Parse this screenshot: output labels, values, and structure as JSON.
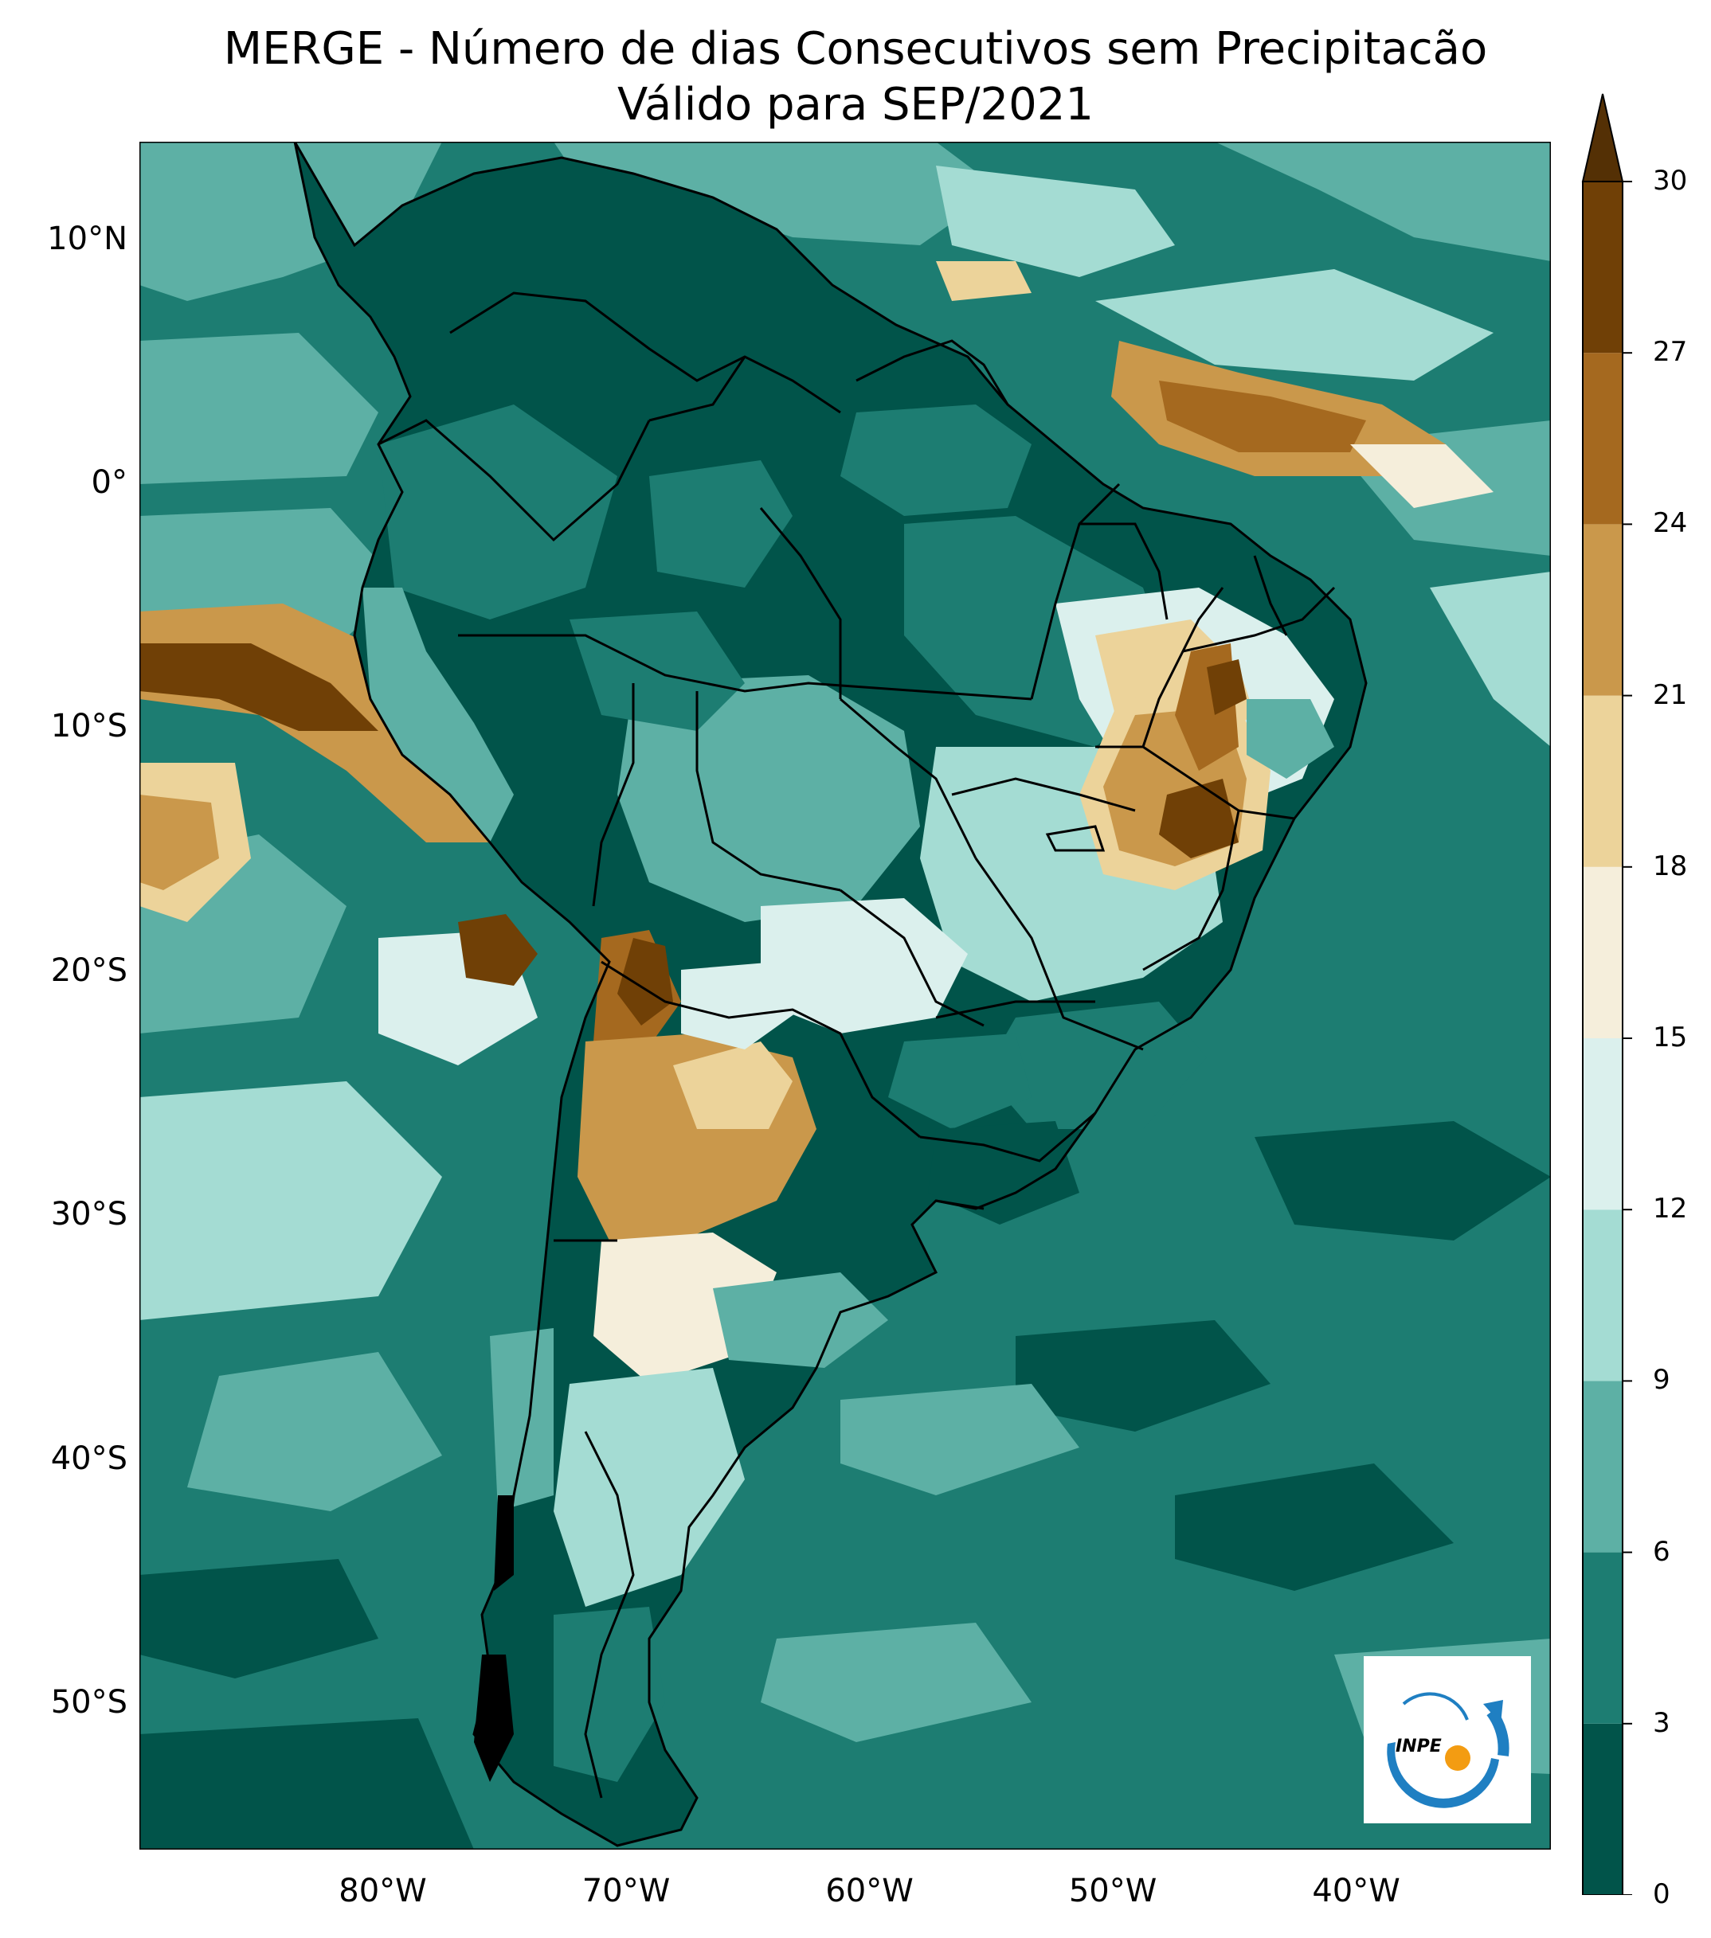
{
  "title": {
    "line1": "MERGE - Número de dias Consecutivos sem Precipitacão",
    "line2": "Válido para SEP/2021"
  },
  "map": {
    "projection": "lat-lon",
    "lon_range": [
      -90,
      -32
    ],
    "lat_range": [
      -56,
      14
    ],
    "lat_ticks": [
      {
        "value": 10,
        "label": "10°N"
      },
      {
        "value": 0,
        "label": "0°"
      },
      {
        "value": -10,
        "label": "10°S"
      },
      {
        "value": -20,
        "label": "20°S"
      },
      {
        "value": -30,
        "label": "30°S"
      },
      {
        "value": -40,
        "label": "40°S"
      },
      {
        "value": -50,
        "label": "50°S"
      }
    ],
    "lon_ticks": [
      {
        "value": -80,
        "label": "80°W"
      },
      {
        "value": -70,
        "label": "70°W"
      },
      {
        "value": -60,
        "label": "60°W"
      },
      {
        "value": -50,
        "label": "50°W"
      },
      {
        "value": -40,
        "label": "40°W"
      }
    ]
  },
  "colorbar": {
    "levels": [
      0,
      3,
      6,
      9,
      12,
      15,
      18,
      21,
      24,
      27,
      30
    ],
    "labels": [
      "0",
      "3",
      "6",
      "9",
      "12",
      "15",
      "18",
      "21",
      "24",
      "27",
      "30"
    ],
    "colors": [
      "#01544a",
      "#1d7d72",
      "#5db0a5",
      "#a4dcd3",
      "#dbf0ed",
      "#f5eedb",
      "#ecd39a",
      "#ca984b",
      "#a5691f",
      "#704006"
    ],
    "extend": "max",
    "extend_color": "#543005"
  },
  "logo": {
    "text": "INPE",
    "colors": {
      "blue": "#1f7fc2",
      "orange": "#f39c12"
    }
  }
}
